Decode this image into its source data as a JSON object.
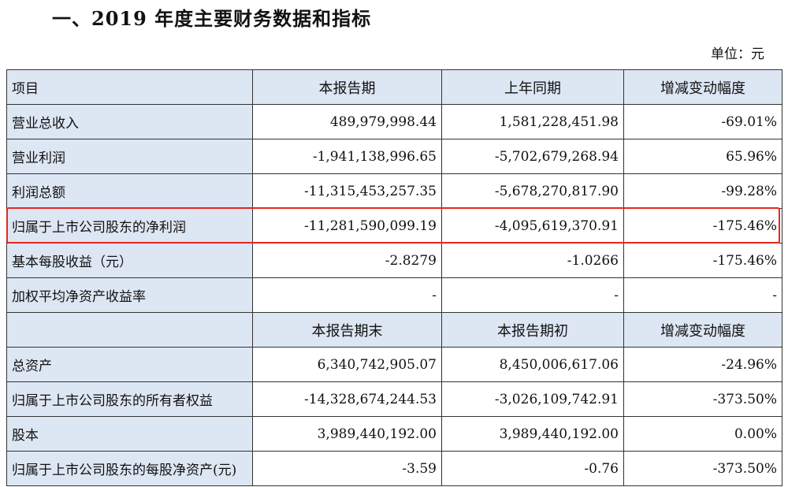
{
  "heading": {
    "title": "一、2019 年度主要财务数据和指标",
    "unit": "单位：元"
  },
  "table": {
    "header1": [
      "项目",
      "本报告期",
      "上年同期",
      "增减变动幅度"
    ],
    "rows1": [
      [
        "营业总收入",
        "489,979,998.44",
        "1,581,228,451.98",
        "-69.01%"
      ],
      [
        "营业利润",
        "-1,941,138,996.65",
        "-5,702,679,268.94",
        "65.96%"
      ],
      [
        "利润总额",
        "-11,315,453,257.35",
        "-5,678,270,817.90",
        "-99.28%"
      ],
      [
        "归属于上市公司股东的净利润",
        "-11,281,590,099.19",
        "-4,095,619,370.91",
        "-175.46%"
      ],
      [
        "基本每股收益（元）",
        "-2.8279",
        "-1.0266",
        "-175.46%"
      ],
      [
        "加权平均净资产收益率",
        "-",
        "-",
        "-"
      ]
    ],
    "header2": [
      "",
      "本报告期末",
      "本报告期初",
      "增减变动幅度"
    ],
    "rows2": [
      [
        "总资产",
        "6,340,742,905.07",
        "8,450,006,617.06",
        "-24.96%"
      ],
      [
        "归属于上市公司股东的所有者权益",
        "-14,328,674,244.53",
        "-3,026,109,742.91",
        "-373.50%"
      ],
      [
        "股本",
        "3,989,440,192.00",
        "3,989,440,192.00",
        "0.00%"
      ],
      [
        "归属于上市公司股东的每股净资产(元)",
        "-3.59",
        "-0.76",
        "-373.50%"
      ]
    ]
  },
  "colors": {
    "header_bg": "#dde6f3",
    "highlight": "#e8261e",
    "border": "#333333"
  }
}
